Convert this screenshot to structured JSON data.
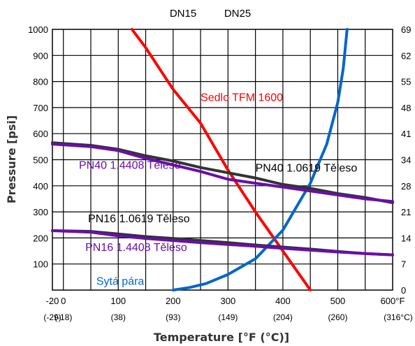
{
  "chart_data": {
    "type": "line",
    "title": "",
    "top_labels": [
      "DN15",
      "DN25"
    ],
    "xlabel": "Temperature [°F (°C)]",
    "ylabel": "Pressure [psi]",
    "xlim": [
      -20,
      600
    ],
    "ylim": [
      0,
      1000
    ],
    "grid": true,
    "x_ticks": [
      {
        "f": -20,
        "f_label": "-20",
        "c_label": "(-29)"
      },
      {
        "f": 0,
        "f_label": "0",
        "c_label": "(-18)"
      },
      {
        "f": 100,
        "f_label": "100",
        "c_label": "(38)"
      },
      {
        "f": 200,
        "f_label": "200",
        "c_label": "(93)"
      },
      {
        "f": 300,
        "f_label": "300",
        "c_label": "(149)"
      },
      {
        "f": 400,
        "f_label": "400",
        "c_label": "(204)"
      },
      {
        "f": 500,
        "f_label": "500",
        "c_label": "(260)"
      },
      {
        "f": 600,
        "f_label": "600°F",
        "c_label": "(316°C)"
      }
    ],
    "y_ticks_left": [
      {
        "v": 100,
        "label": "100"
      },
      {
        "v": 200,
        "label": "200"
      },
      {
        "v": 300,
        "label": "300"
      },
      {
        "v": 400,
        "label": "400"
      },
      {
        "v": 500,
        "label": "500"
      },
      {
        "v": 600,
        "label": "600"
      },
      {
        "v": 700,
        "label": "700"
      },
      {
        "v": 800,
        "label": "800"
      },
      {
        "v": 900,
        "label": "900"
      },
      {
        "v": 1000,
        "label": "1000"
      }
    ],
    "y_ticks_right": [
      {
        "v": 0,
        "label": "0"
      },
      {
        "v": 100,
        "label": "7"
      },
      {
        "v": 200,
        "label": "14"
      },
      {
        "v": 300,
        "label": "21"
      },
      {
        "v": 400,
        "label": "28"
      },
      {
        "v": 500,
        "label": "34"
      },
      {
        "v": 600,
        "label": "41"
      },
      {
        "v": 700,
        "label": "48"
      },
      {
        "v": 800,
        "label": "55"
      },
      {
        "v": 900,
        "label": "62"
      },
      {
        "v": 1000,
        "label": "69"
      }
    ],
    "series": [
      {
        "name": "Sedlo TFM 1600",
        "color": "#ff0000",
        "x": [
          125,
          150,
          200,
          250,
          300,
          350,
          400,
          450
        ],
        "y": [
          1000,
          930,
          770,
          640,
          460,
          300,
          150,
          0
        ]
      },
      {
        "name": "Sytá pára",
        "color": "#0066cc",
        "x": [
          200,
          230,
          260,
          300,
          350,
          400,
          450,
          480,
          500,
          510,
          517
        ],
        "y": [
          0,
          10,
          25,
          60,
          120,
          230,
          410,
          560,
          720,
          850,
          1000
        ]
      },
      {
        "name": "PN40 1.0619 Těleso",
        "color": "#333333",
        "x": [
          -20,
          50,
          100,
          150,
          200,
          250,
          300,
          350,
          400,
          450,
          500,
          550,
          600
        ],
        "y": [
          565,
          555,
          540,
          515,
          495,
          470,
          450,
          430,
          405,
          390,
          370,
          355,
          335
        ]
      },
      {
        "name": "PN40 1.4408 Těleso",
        "color": "#6a0dad",
        "x": [
          -20,
          50,
          100,
          150,
          200,
          250,
          300,
          350,
          400,
          450,
          500,
          550,
          600
        ],
        "y": [
          560,
          550,
          535,
          505,
          480,
          455,
          425,
          410,
          395,
          380,
          365,
          350,
          340
        ]
      },
      {
        "name": "PN16 1.0619 Těleso",
        "color": "#333333",
        "x": [
          -20,
          50,
          100,
          150,
          200,
          250,
          300,
          350,
          400,
          450,
          500,
          550,
          600
        ],
        "y": [
          228,
          225,
          215,
          205,
          198,
          190,
          182,
          173,
          165,
          157,
          148,
          140,
          135
        ]
      },
      {
        "name": "PN16 1.4408 Těleso",
        "color": "#6a0dad",
        "x": [
          -20,
          50,
          100,
          150,
          200,
          250,
          300,
          350,
          400,
          450,
          500,
          550,
          600
        ],
        "y": [
          228,
          222,
          208,
          198,
          190,
          182,
          175,
          168,
          160,
          153,
          146,
          140,
          135
        ]
      }
    ],
    "annotations": [
      {
        "text": "Sedlo TFM 1600",
        "color": "#ff0000",
        "x": 250,
        "y": 725
      },
      {
        "text": "PN40 1.4408 Těleso",
        "color": "#6a0dad",
        "x": -20,
        "y": 465
      },
      {
        "text": "PN40 1.0619 Těleso",
        "color": "#000000",
        "x": 350,
        "y": 455
      },
      {
        "text": "PN16 1.0619 Těleso",
        "color": "#000000",
        "x": 45,
        "y": 260
      },
      {
        "text": "PN16 1.4408 Těleso",
        "color": "#6a0dad",
        "x": 40,
        "y": 150
      },
      {
        "text": "Sytá pára",
        "color": "#0066cc",
        "x": 60,
        "y": 20
      }
    ]
  }
}
